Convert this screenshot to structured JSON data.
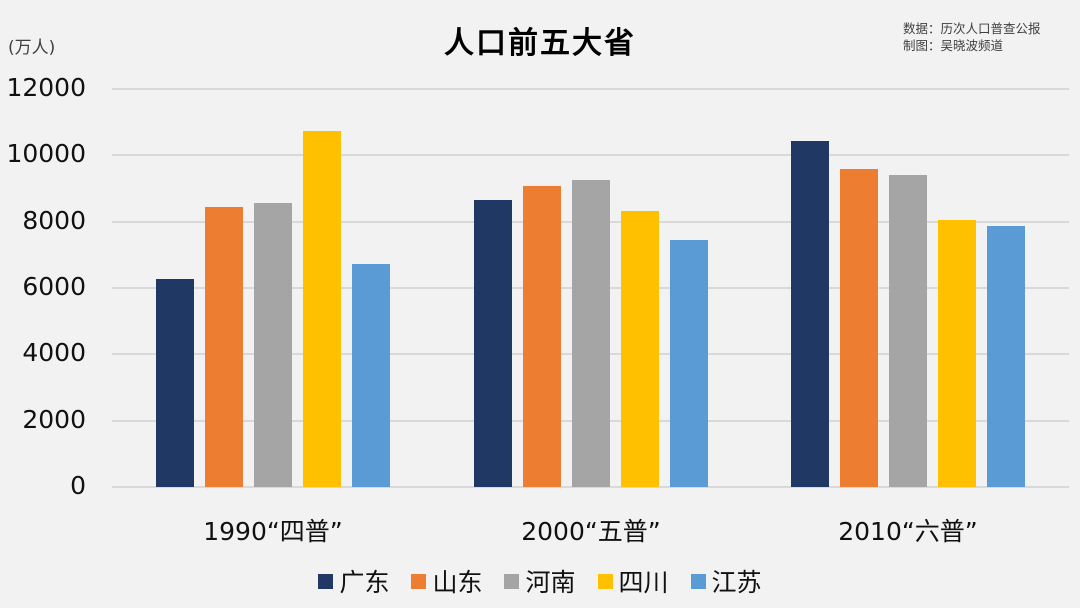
{
  "header": {
    "title": "人口前五大省",
    "unit": "(万人)",
    "source_line1": "数据：历次人口普查公报",
    "source_line2": "制图：吴晓波频道"
  },
  "colors": {
    "广东": "#203864",
    "山东": "#ed7d31",
    "河南": "#a5a5a5",
    "四川": "#ffc000",
    "江苏": "#5b9bd5",
    "background": "#f2f2f2",
    "grid": "#d9d9d9"
  },
  "chart_data": {
    "type": "bar",
    "title": "人口前五大省",
    "xlabel": "",
    "ylabel": "(万人)",
    "ylim": [
      0,
      12000
    ],
    "yticks": [
      0,
      2000,
      4000,
      6000,
      8000,
      10000,
      12000
    ],
    "grid": true,
    "legend_position": "bottom",
    "categories": [
      "1990“四普”",
      "2000“五普”",
      "2010“六普”"
    ],
    "series": [
      {
        "name": "广东",
        "color": "#203864",
        "values": [
          6270,
          8650,
          10430
        ]
      },
      {
        "name": "山东",
        "color": "#ed7d31",
        "values": [
          8440,
          9080,
          9580
        ]
      },
      {
        "name": "河南",
        "color": "#a5a5a5",
        "values": [
          8550,
          9260,
          9400
        ]
      },
      {
        "name": "四川",
        "color": "#ffc000",
        "values": [
          10720,
          8320,
          8040
        ]
      },
      {
        "name": "江苏",
        "color": "#5b9bd5",
        "values": [
          6710,
          7440,
          7870
        ]
      }
    ],
    "annotations": [
      "数据：历次人口普查公报",
      "制图：吴晓波频道"
    ]
  }
}
